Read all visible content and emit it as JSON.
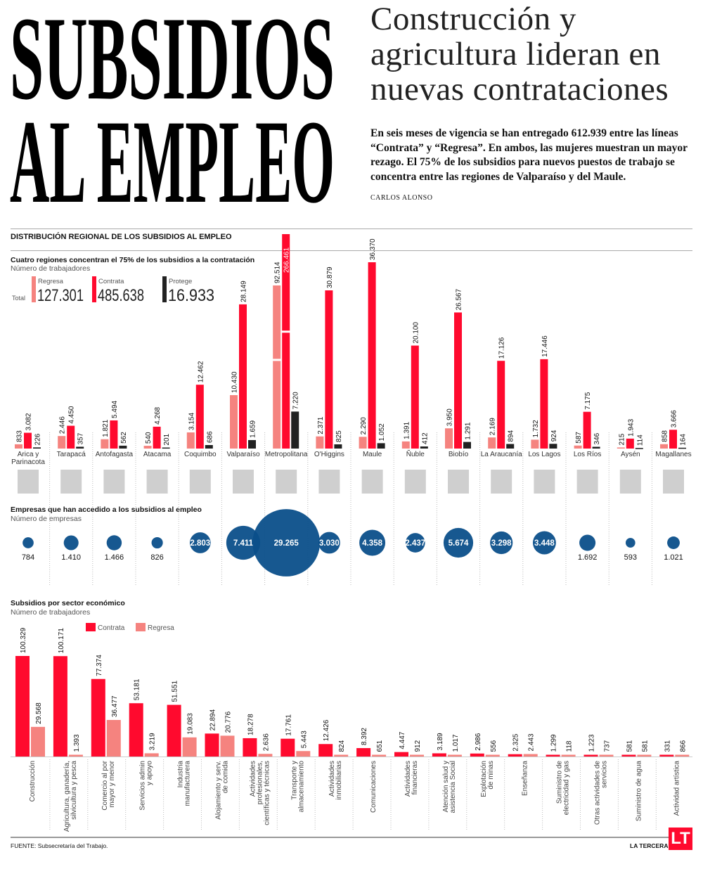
{
  "header": {
    "title_line1": "SUBSIDIOS",
    "title_line2": "AL EMPLEO",
    "headline": "Construcción y\nagricultura lideran en\nnuevas contrataciones",
    "lede": "En seis meses de vigencia se han entregado 612.939 entre las líneas “Contrata” y “Regresa”. En ambos, las mujeres muestran un mayor rezago. El 75% de los subsidios para nuevos puestos de trabajo se concentra entre las regiones de Valparaíso y del Maule.",
    "byline": "CARLOS ALONSO"
  },
  "section_title": "DISTRIBUCIÓN REGIONAL DE LOS SUBSIDIOS AL EMPLEO",
  "colors": {
    "regresa": "#f5837f",
    "contrata": "#ff0a2e",
    "protege": "#222222",
    "bubble": "#0b4f8a",
    "map": "#cfcfcf"
  },
  "chart_data": [
    {
      "type": "bar",
      "title": "Cuatro regiones concentran el 75% de los subsidios a la contratación",
      "ylabel": "Número de trabajadores",
      "legend": {
        "total_label": "Total",
        "items": [
          {
            "name": "Regresa",
            "total": "127.301"
          },
          {
            "name": "Contrata",
            "total": "485.638"
          },
          {
            "name": "Protege",
            "total": "16.933"
          }
        ]
      },
      "categories": [
        "Arica y\nParinacota",
        "Tarapacá",
        "Antofagasta",
        "Atacama",
        "Coquimbo",
        "Valparaíso",
        "Metropolitana",
        "O'Higgins",
        "Maule",
        "Ñuble",
        "Biobío",
        "La Araucanía",
        "Los Lagos",
        "Los Ríos",
        "Aysén",
        "Magallanes"
      ],
      "series": [
        {
          "name": "Regresa",
          "values": [
            833,
            2446,
            1821,
            540,
            3154,
            10430,
            92514,
            2371,
            2290,
            1391,
            3950,
            2169,
            1732,
            587,
            215,
            858
          ],
          "labels": [
            "833",
            "2.446",
            "1.821",
            "540",
            "3.154",
            "10.430",
            "92.514",
            "2.371",
            "2.290",
            "1.391",
            "3.950",
            "2.169",
            "1.732",
            "587",
            "215",
            "858"
          ]
        },
        {
          "name": "Contrata",
          "values": [
            3082,
            4450,
            5494,
            4268,
            12462,
            28149,
            266461,
            30879,
            36370,
            20100,
            26567,
            17126,
            17446,
            7175,
            1943,
            3666
          ],
          "labels": [
            "3.082",
            "4.450",
            "5.494",
            "4.268",
            "12.462",
            "28.149",
            "266.461",
            "30.879",
            "36.370",
            "20.100",
            "26.567",
            "17.126",
            "17.446",
            "7.175",
            "1.943",
            "3.666"
          ]
        },
        {
          "name": "Protege",
          "values": [
            226,
            357,
            562,
            201,
            686,
            1659,
            7220,
            825,
            1052,
            412,
            1291,
            894,
            924,
            346,
            114,
            164
          ],
          "labels": [
            "226",
            "357",
            "562",
            "201",
            "686",
            "1.659",
            "7.220",
            "825",
            "1.052",
            "412",
            "1.291",
            "894",
            "924",
            "346",
            "114",
            "164"
          ]
        }
      ]
    },
    {
      "type": "scatter",
      "title": "Empresas que han accedido a los subsidios al empleo",
      "ylabel": "Número de empresas",
      "values": [
        784,
        1410,
        1466,
        826,
        2803,
        7411,
        29265,
        3030,
        4358,
        2437,
        5674,
        3298,
        3448,
        1692,
        593,
        1021
      ],
      "labels": [
        "784",
        "1.410",
        "1.466",
        "826",
        "2.803",
        "7.411",
        "29.265",
        "3.030",
        "4.358",
        "2.437",
        "5.674",
        "3.298",
        "3.448",
        "1.692",
        "593",
        "1.021"
      ]
    },
    {
      "type": "bar",
      "title": "Subsidios por sector económico",
      "ylabel": "Número de trabajadores",
      "legend": [
        "Contrata",
        "Regresa"
      ],
      "categories": [
        "Construcción",
        "Agricultura, ganadería,\nsilvicultura y pesca",
        "Comercio al por\nmayor y menor",
        "Servicios admin\ny apoyo",
        "Industria\nmanufacturera",
        "Alojamiento y serv.\nde comida",
        "Actividades\nprofesionales,\ncientíficas y técnicas",
        "Transporte y\nalmacenamiento",
        "Actividades\ninmobiliarias",
        "Comunicaciones",
        "Actividades\nfinancieras",
        "Atención salud y\nasistencia Social",
        "Explotación\nde minas",
        "Enseñanza",
        "Suministro de\nelectricidad y gas",
        "Otras actividades de\nservicios",
        "Suministro de agua",
        "Actividad artística"
      ],
      "series": [
        {
          "name": "Contrata",
          "values": [
            100329,
            100171,
            77374,
            53181,
            51551,
            22894,
            18278,
            17761,
            12426,
            8392,
            4447,
            3189,
            2986,
            2325,
            1299,
            1223,
            581,
            331
          ],
          "labels": [
            "100.329",
            "100.171",
            "77.374",
            "53.181",
            "51.551",
            "22.894",
            "18.278",
            "17.761",
            "12.426",
            "8.392",
            "4.447",
            "3.189",
            "2.986",
            "2.325",
            "1.299",
            "1.223",
            "581",
            "331"
          ]
        },
        {
          "name": "Regresa",
          "values": [
            29568,
            1393,
            36477,
            3219,
            19083,
            20776,
            2636,
            5443,
            824,
            651,
            912,
            1017,
            556,
            2443,
            118,
            737,
            581,
            866
          ],
          "labels": [
            "29.568",
            "1.393",
            "36.477",
            "3.219",
            "19.083",
            "20.776",
            "2.636",
            "5.443",
            "824",
            "651",
            "912",
            "1.017",
            "556",
            "2.443",
            "118",
            "737",
            "581",
            "866"
          ]
        }
      ]
    }
  ],
  "footer": {
    "source": "FUENTE: Subsecretaría del Trabajo.",
    "brand": "LA TERCERA",
    "logo": "LT"
  }
}
